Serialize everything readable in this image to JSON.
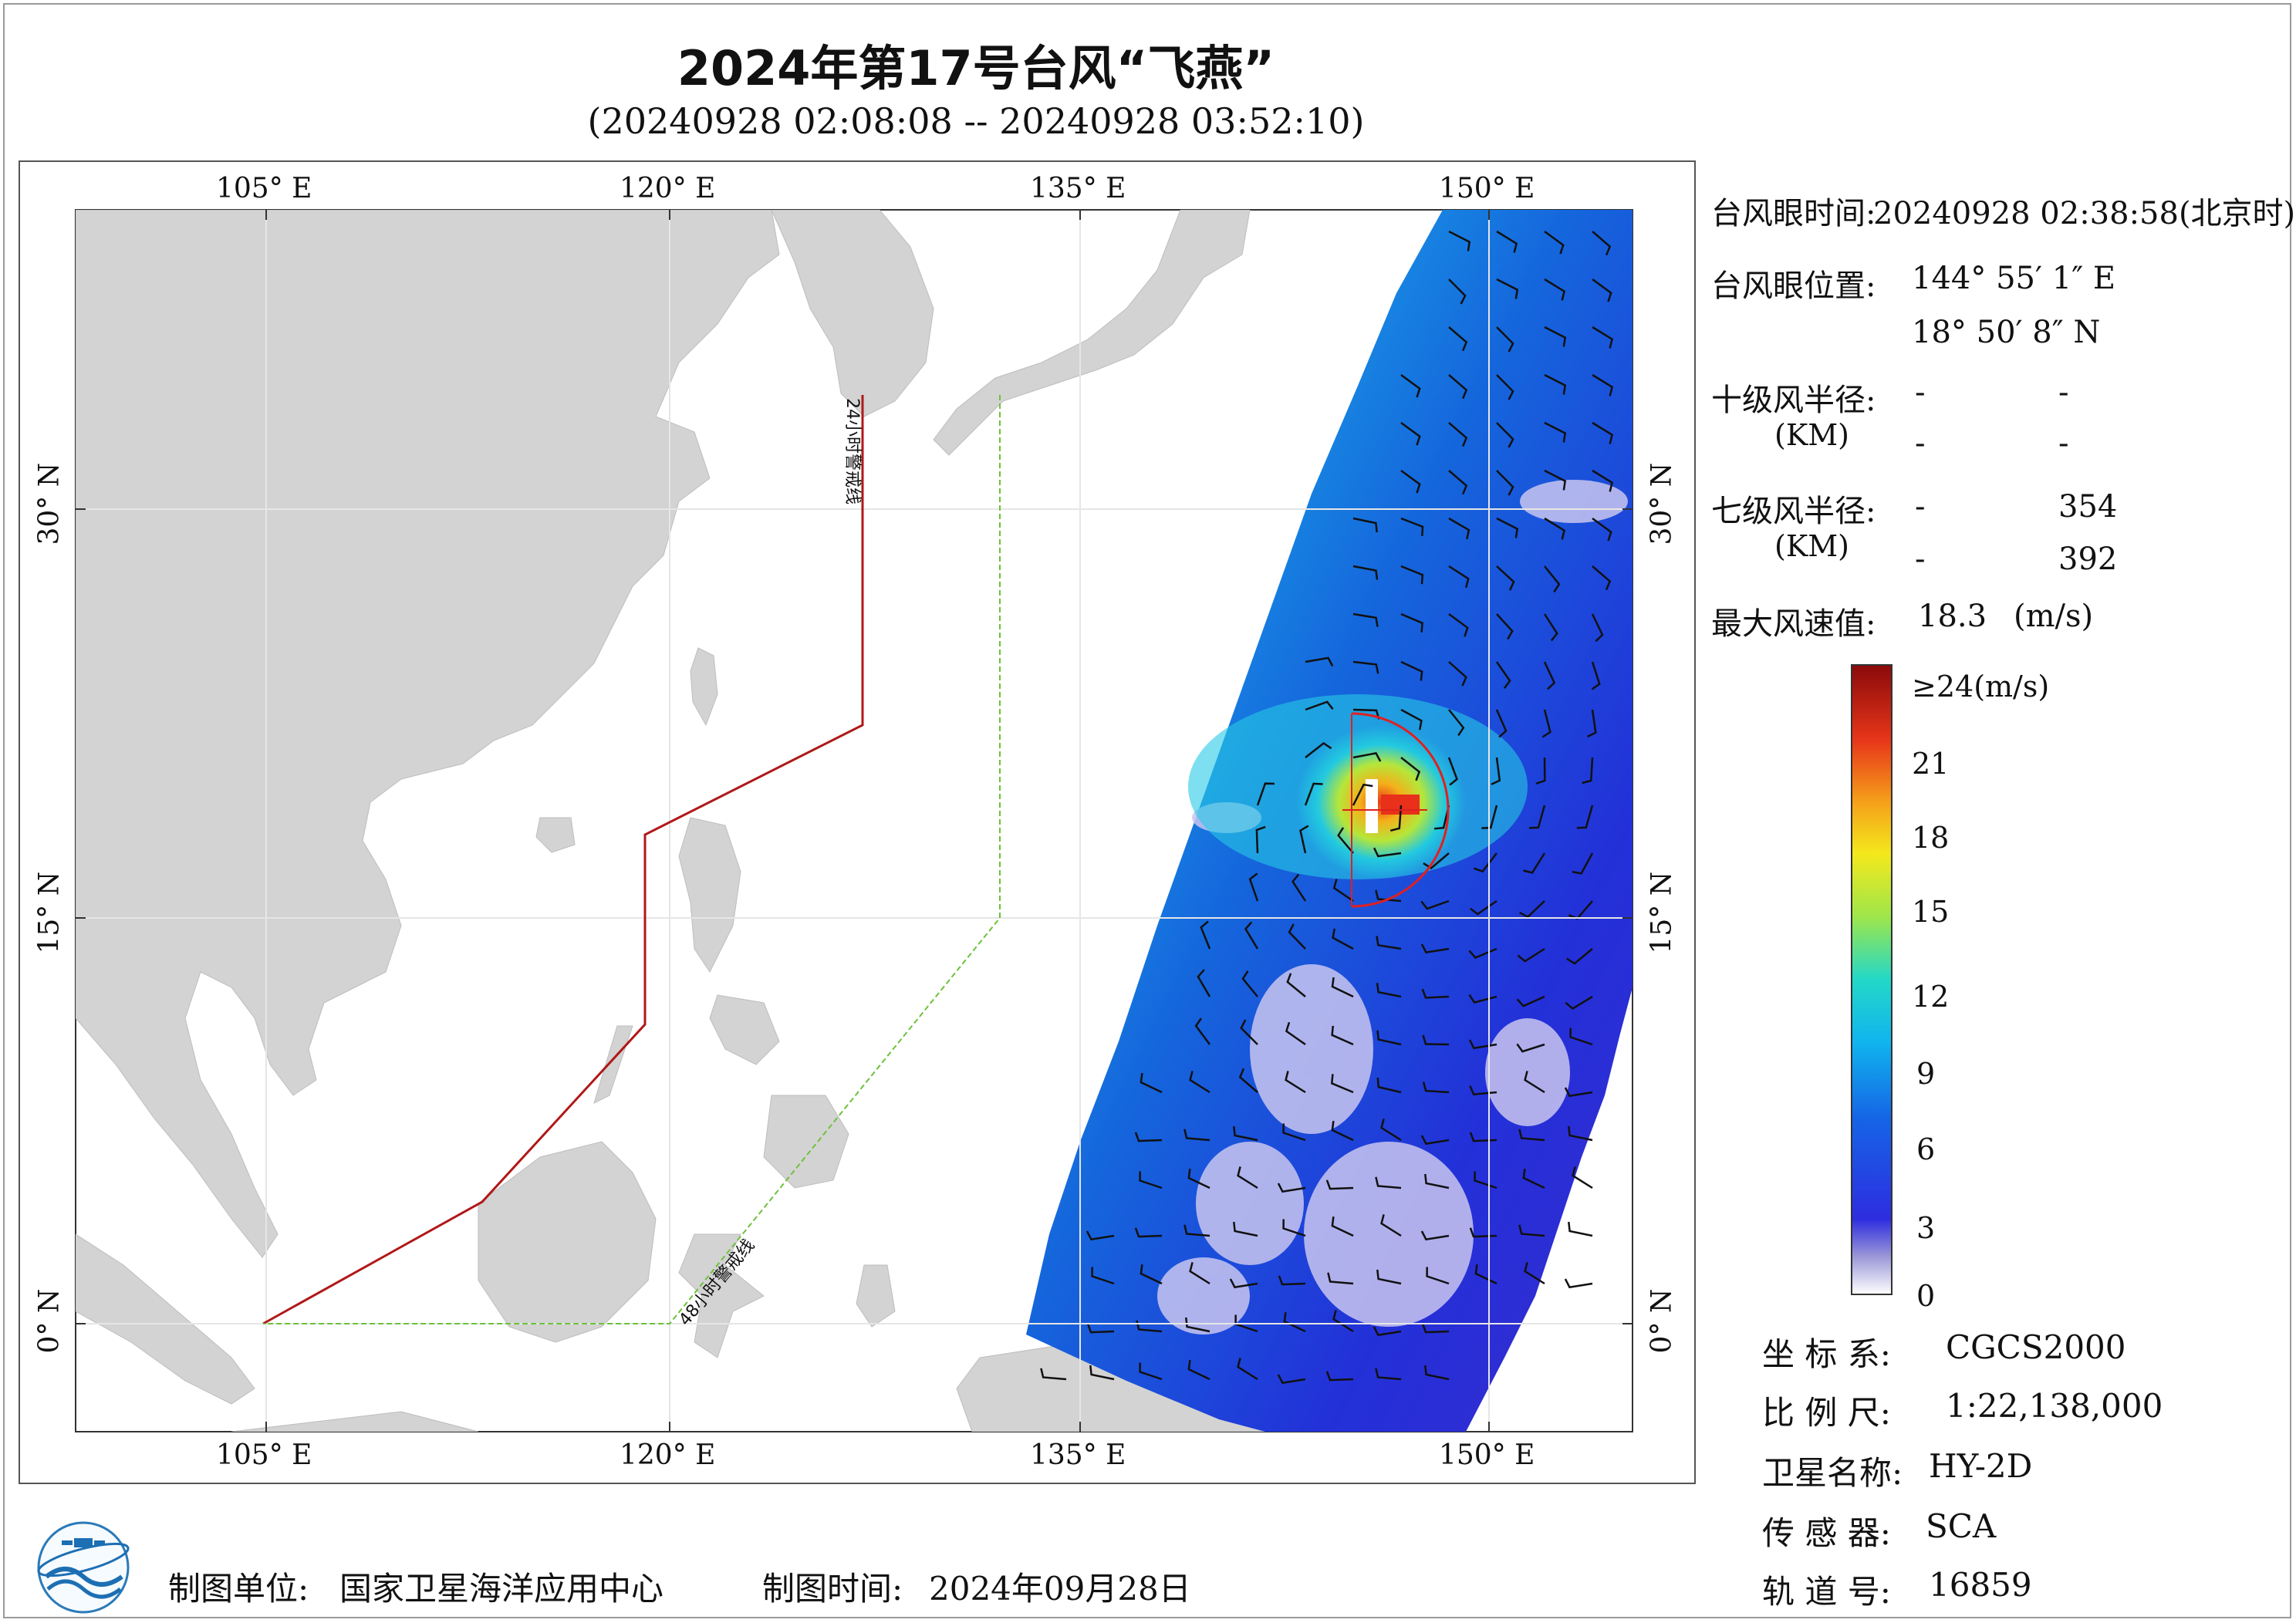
{
  "title": "2024年第17号台风“飞燕”",
  "subtitle": "(20240928 02:08:08 -- 20240928 03:52:10)",
  "map": {
    "lon_ticks": [
      "105° E",
      "120° E",
      "135° E",
      "150° E"
    ],
    "lat_ticks": [
      "30° N",
      "15° N",
      "0° N"
    ],
    "warning_24h_label": "24小时警戒线",
    "warning_48h_label": "48小时警戒线",
    "colors": {
      "ocean": "#ffffff",
      "land": "#d3d3d3",
      "warning_24h": "#b01818",
      "warning_48h": "#6cc23a",
      "eye_circle": "#e02020"
    }
  },
  "info": {
    "eye_time_label": "台风眼时间:",
    "eye_time_value": "20240928 02:38:58(北京时)",
    "eye_pos_label": "台风眼位置:",
    "eye_lon": "144° 55′ 1″ E",
    "eye_lat": "18° 50′ 8″ N",
    "r10_label": "十级风半径:",
    "r10_unit": "(KM)",
    "r10_values": [
      "-",
      "-",
      "-",
      "-"
    ],
    "r7_label": "七级风半径:",
    "r7_unit": "(KM)",
    "r7_values": [
      "-",
      "354",
      "-",
      "392"
    ],
    "max_wind_label": "最大风速值:",
    "max_wind_value": "18.3",
    "max_wind_unit": "(m/s)"
  },
  "colorbar": {
    "labels": [
      "≥24(m/s)",
      "21",
      "18",
      "15",
      "12",
      "9",
      "6",
      "3",
      "0"
    ],
    "min": 0,
    "max": 24
  },
  "meta": {
    "crs_label": "坐 标 系:",
    "crs_value": "CGCS2000",
    "scale_label": "比 例 尺:",
    "scale_value": "1:22,138,000",
    "sat_label": "卫星名称:",
    "sat_value": "HY-2D",
    "sensor_label": "传 感 器:",
    "sensor_value": "SCA",
    "orbit_label": "轨 道 号:",
    "orbit_value": "16859"
  },
  "footer": {
    "maker_label": "制图单位:",
    "maker_value": "国家卫星海洋应用中心",
    "date_label": "制图时间:",
    "date_value": "2024年09月28日"
  }
}
